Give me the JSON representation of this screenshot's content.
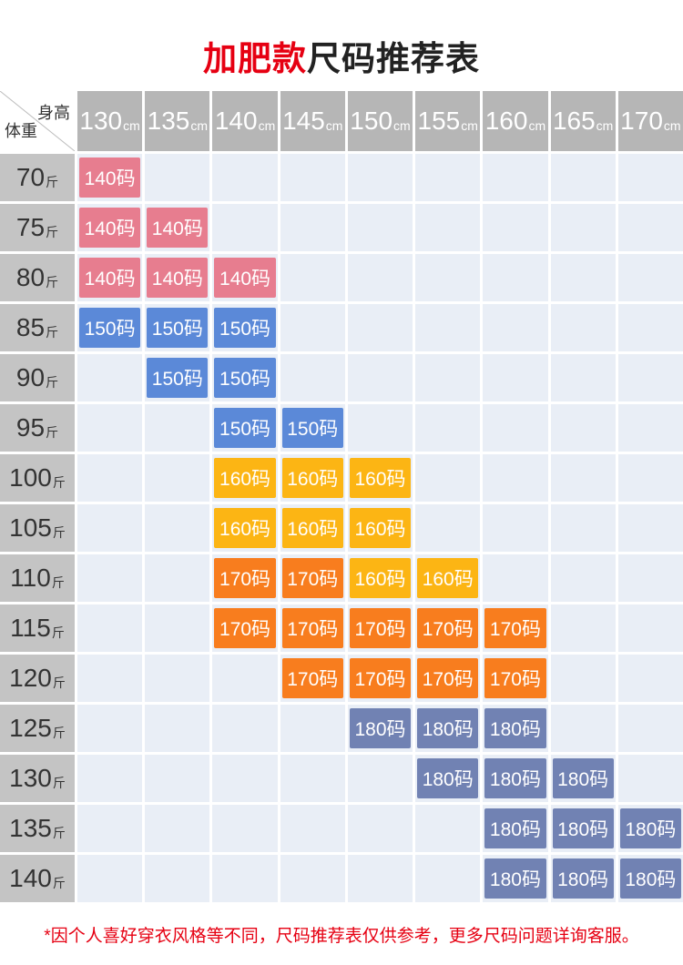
{
  "title": {
    "highlight": "加肥款",
    "rest": "尺码推荐表"
  },
  "footer": "*因个人喜好穿衣风格等不同，尺码推荐表仅供参考，更多尺码问题详询客服。",
  "chart_data": {
    "type": "table",
    "corner_top_label": "身高",
    "corner_bottom_label": "体重",
    "column_unit": "cm",
    "row_unit": "斤",
    "columns": [
      "130",
      "135",
      "140",
      "145",
      "150",
      "155",
      "160",
      "165",
      "170"
    ],
    "rows": [
      {
        "weight": "70",
        "badges": [
          {
            "col": 0,
            "label": "140码",
            "color": "pink"
          }
        ]
      },
      {
        "weight": "75",
        "badges": [
          {
            "col": 0,
            "label": "140码",
            "color": "pink"
          },
          {
            "col": 1,
            "label": "140码",
            "color": "pink"
          }
        ]
      },
      {
        "weight": "80",
        "badges": [
          {
            "col": 0,
            "label": "140码",
            "color": "pink"
          },
          {
            "col": 1,
            "label": "140码",
            "color": "pink"
          },
          {
            "col": 2,
            "label": "140码",
            "color": "pink"
          }
        ]
      },
      {
        "weight": "85",
        "badges": [
          {
            "col": 0,
            "label": "150码",
            "color": "blue"
          },
          {
            "col": 1,
            "label": "150码",
            "color": "blue"
          },
          {
            "col": 2,
            "label": "150码",
            "color": "blue"
          }
        ]
      },
      {
        "weight": "90",
        "badges": [
          {
            "col": 1,
            "label": "150码",
            "color": "blue"
          },
          {
            "col": 2,
            "label": "150码",
            "color": "blue"
          }
        ]
      },
      {
        "weight": "95",
        "badges": [
          {
            "col": 2,
            "label": "150码",
            "color": "blue"
          },
          {
            "col": 3,
            "label": "150码",
            "color": "blue"
          }
        ]
      },
      {
        "weight": "100",
        "badges": [
          {
            "col": 2,
            "label": "160码",
            "color": "yellow"
          },
          {
            "col": 3,
            "label": "160码",
            "color": "yellow"
          },
          {
            "col": 4,
            "label": "160码",
            "color": "yellow"
          }
        ]
      },
      {
        "weight": "105",
        "badges": [
          {
            "col": 2,
            "label": "160码",
            "color": "yellow"
          },
          {
            "col": 3,
            "label": "160码",
            "color": "yellow"
          },
          {
            "col": 4,
            "label": "160码",
            "color": "yellow"
          }
        ]
      },
      {
        "weight": "110",
        "badges": [
          {
            "col": 2,
            "label": "170码",
            "color": "orange"
          },
          {
            "col": 3,
            "label": "170码",
            "color": "orange"
          },
          {
            "col": 4,
            "label": "160码",
            "color": "yellow"
          },
          {
            "col": 5,
            "label": "160码",
            "color": "yellow"
          }
        ]
      },
      {
        "weight": "115",
        "badges": [
          {
            "col": 2,
            "label": "170码",
            "color": "orange"
          },
          {
            "col": 3,
            "label": "170码",
            "color": "orange"
          },
          {
            "col": 4,
            "label": "170码",
            "color": "orange"
          },
          {
            "col": 5,
            "label": "170码",
            "color": "orange"
          },
          {
            "col": 6,
            "label": "170码",
            "color": "orange"
          }
        ]
      },
      {
        "weight": "120",
        "badges": [
          {
            "col": 3,
            "label": "170码",
            "color": "orange"
          },
          {
            "col": 4,
            "label": "170码",
            "color": "orange"
          },
          {
            "col": 5,
            "label": "170码",
            "color": "orange"
          },
          {
            "col": 6,
            "label": "170码",
            "color": "orange"
          }
        ]
      },
      {
        "weight": "125",
        "badges": [
          {
            "col": 4,
            "label": "180码",
            "color": "slate"
          },
          {
            "col": 5,
            "label": "180码",
            "color": "slate"
          },
          {
            "col": 6,
            "label": "180码",
            "color": "slate"
          }
        ]
      },
      {
        "weight": "130",
        "badges": [
          {
            "col": 5,
            "label": "180码",
            "color": "slate"
          },
          {
            "col": 6,
            "label": "180码",
            "color": "slate"
          },
          {
            "col": 7,
            "label": "180码",
            "color": "slate"
          }
        ]
      },
      {
        "weight": "135",
        "badges": [
          {
            "col": 6,
            "label": "180码",
            "color": "slate"
          },
          {
            "col": 7,
            "label": "180码",
            "color": "slate"
          },
          {
            "col": 8,
            "label": "180码",
            "color": "slate"
          }
        ]
      },
      {
        "weight": "140",
        "badges": [
          {
            "col": 6,
            "label": "180码",
            "color": "slate"
          },
          {
            "col": 7,
            "label": "180码",
            "color": "slate"
          },
          {
            "col": 8,
            "label": "180码",
            "color": "slate"
          }
        ]
      }
    ],
    "badge_colors": {
      "pink": "#e77d8f",
      "blue": "#5b89d8",
      "yellow": "#fcb514",
      "orange": "#f87d1e",
      "slate": "#7182b3"
    },
    "header_bg": "#b6b6b6",
    "row_label_bg": "#c4c4c4",
    "cell_bg": "#e9eef6",
    "diagonal_color": "#bcbcbc",
    "accent_red": "#e60012"
  }
}
